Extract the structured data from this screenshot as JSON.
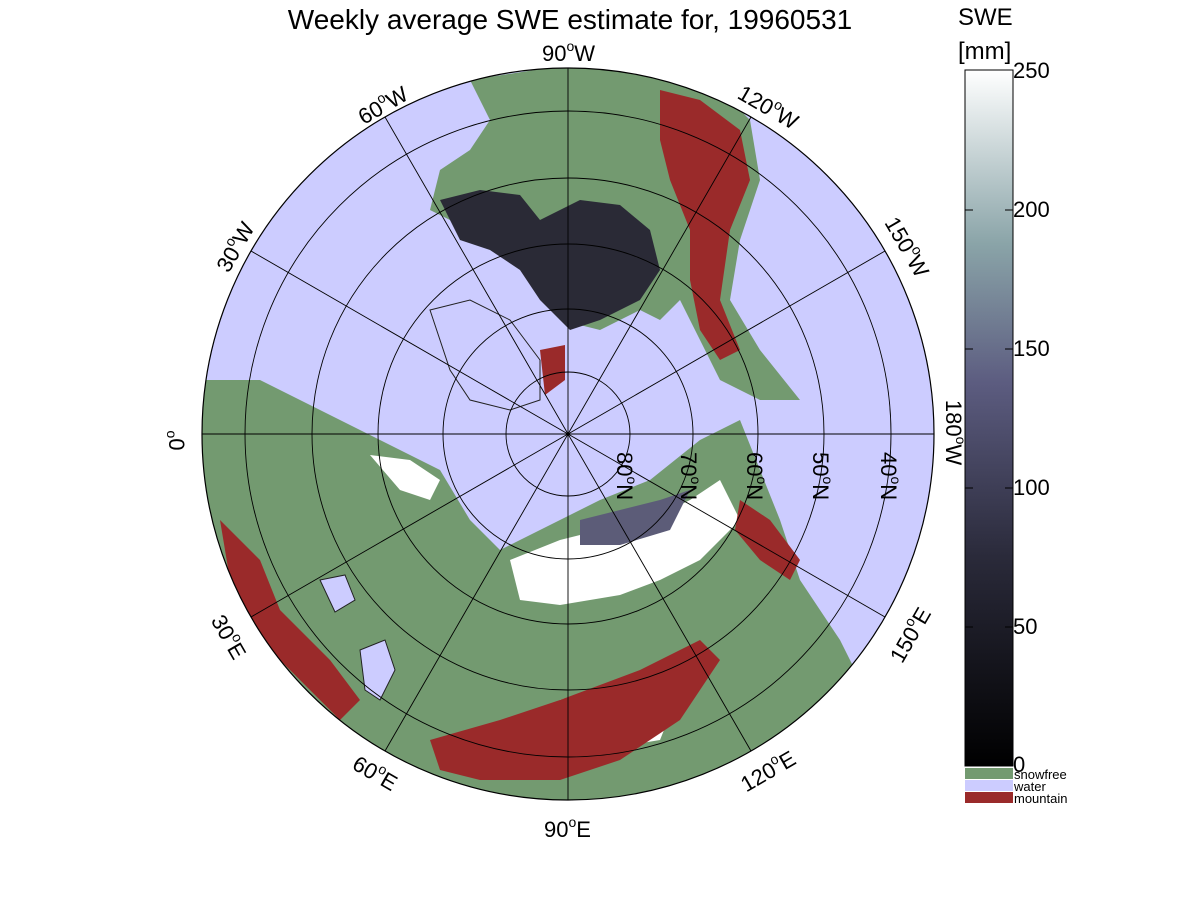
{
  "title": "Weekly average SWE estimate for, 19960531",
  "longitude_labels": [
    {
      "deg": "90",
      "dir": "W"
    },
    {
      "deg": "120",
      "dir": "W"
    },
    {
      "deg": "60",
      "dir": "W"
    },
    {
      "deg": "150",
      "dir": "W"
    },
    {
      "deg": "30",
      "dir": "W"
    },
    {
      "deg": "180",
      "dir": "W"
    },
    {
      "deg": "0",
      "dir": ""
    },
    {
      "deg": "150",
      "dir": "E"
    },
    {
      "deg": "30",
      "dir": "E"
    },
    {
      "deg": "120",
      "dir": "E"
    },
    {
      "deg": "60",
      "dir": "E"
    },
    {
      "deg": "90",
      "dir": "E"
    }
  ],
  "latitude_labels": [
    {
      "deg": "80",
      "dir": "N"
    },
    {
      "deg": "70",
      "dir": "N"
    },
    {
      "deg": "60",
      "dir": "N"
    },
    {
      "deg": "50",
      "dir": "N"
    },
    {
      "deg": "40",
      "dir": "N"
    }
  ],
  "colorbar": {
    "title_line1": "SWE",
    "title_line2": "[mm]",
    "ticks": [
      "250",
      "200",
      "150",
      "100",
      "50",
      "0"
    ],
    "range": [
      0,
      250
    ],
    "colors": {
      "low": "#0a0a10",
      "mid": "#5a5a7a",
      "high": "#ffffff"
    }
  },
  "legend": [
    {
      "label": "snowfree",
      "color": "#739a70"
    },
    {
      "label": "water",
      "color": "#ccccff"
    },
    {
      "label": "mountain",
      "color": "#9a2a2a"
    }
  ],
  "colors": {
    "water": "#ccccff",
    "land": "#739a70",
    "mountain": "#9a2a2a",
    "snow_deep": "#2a2a36",
    "snow_white": "#ffffff"
  }
}
